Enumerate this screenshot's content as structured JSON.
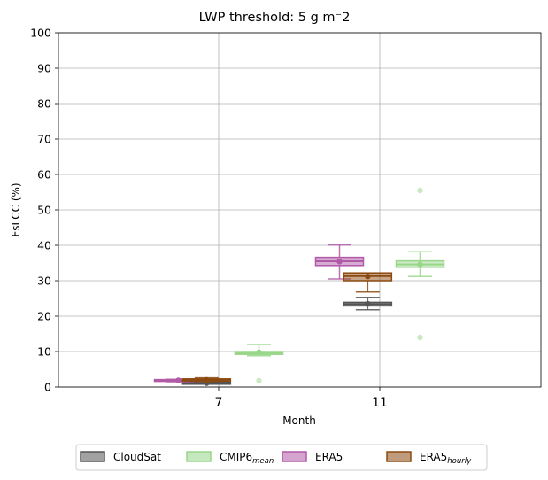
{
  "chart_data": {
    "type": "box",
    "title": "LWP threshold: 5 g m⁻2",
    "xlabel": "Month",
    "ylabel": "FsLCC (%)",
    "ylim": [
      0,
      100
    ],
    "yticks": [
      0,
      10,
      20,
      30,
      40,
      50,
      60,
      70,
      80,
      90,
      100
    ],
    "categories": [
      "7",
      "11"
    ],
    "grid": true,
    "legend_position": "bottom-center",
    "series": [
      {
        "name": "CloudSat",
        "color": "#555555",
        "boxes": [
          {
            "category": "7",
            "whisker_low": 0.8,
            "q1": 0.8,
            "median": 1.1,
            "q3": 1.4,
            "whisker_high": 1.6,
            "mean": 1.1,
            "outliers": []
          },
          {
            "category": "11",
            "whisker_low": 21.8,
            "q1": 22.9,
            "median": 23.4,
            "q3": 23.9,
            "whisker_high": 25.3,
            "mean": 23.5,
            "outliers": []
          }
        ]
      },
      {
        "name": "CMIP6",
        "name_subscript": "mean",
        "color": "#98d689",
        "boxes": [
          {
            "category": "7",
            "whisker_low": 8.8,
            "q1": 9.2,
            "median": 9.6,
            "q3": 10.0,
            "whisker_high": 12.0,
            "mean": 9.8,
            "outliers": [
              1.8
            ]
          },
          {
            "category": "11",
            "whisker_low": 31.2,
            "q1": 33.8,
            "median": 34.6,
            "q3": 35.6,
            "whisker_high": 38.2,
            "mean": 34.6,
            "outliers": [
              55.5,
              14.0
            ]
          }
        ]
      },
      {
        "name": "ERA5",
        "color": "#b05aa8",
        "boxes": [
          {
            "category": "7",
            "whisker_low": 1.5,
            "q1": 1.6,
            "median": 1.9,
            "q3": 2.1,
            "whisker_high": 2.2,
            "mean": 1.9,
            "outliers": []
          },
          {
            "category": "11",
            "whisker_low": 30.5,
            "q1": 34.3,
            "median": 35.5,
            "q3": 36.6,
            "whisker_high": 40.1,
            "mean": 35.4,
            "outliers": []
          }
        ]
      },
      {
        "name": "ERA5",
        "name_subscript": "hourly",
        "color": "#8c4a10",
        "boxes": [
          {
            "category": "7",
            "whisker_low": 1.6,
            "q1": 1.7,
            "median": 2.0,
            "q3": 2.3,
            "whisker_high": 2.6,
            "mean": 2.0,
            "outliers": []
          },
          {
            "category": "11",
            "whisker_low": 26.8,
            "q1": 30.0,
            "median": 31.3,
            "q3": 32.2,
            "whisker_high": 32.2,
            "mean": 31.2,
            "outliers": []
          }
        ]
      }
    ]
  }
}
